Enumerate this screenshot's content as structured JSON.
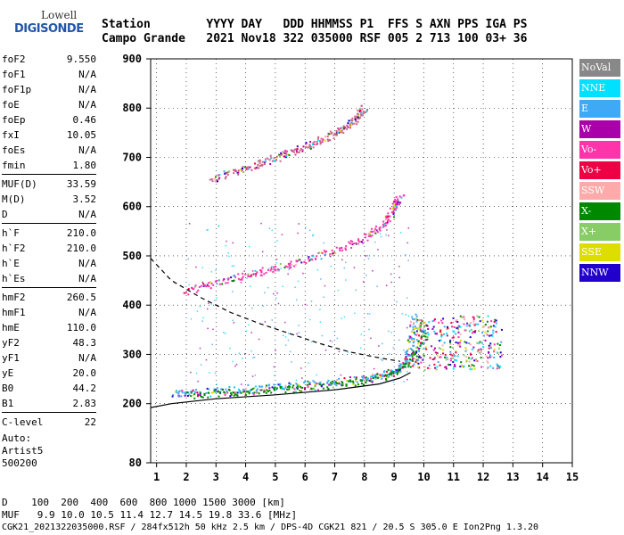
{
  "logo": {
    "line1": "Lowell",
    "line2": "DIGISONDE"
  },
  "header": {
    "line1": "Station        YYYY DAY   DDD HHMMSS P1  FFS S AXN PPS IGA PS",
    "line2": "Campo Grande   2021 Nov18 322 035000 RSF 005 2 713 100 03+ 36"
  },
  "params": [
    [
      {
        "name": "foF2",
        "value": "9.550"
      },
      {
        "name": "foF1",
        "value": "N/A"
      },
      {
        "name": "foF1p",
        "value": "N/A"
      },
      {
        "name": "foE",
        "value": "N/A"
      },
      {
        "name": "foEp",
        "value": "0.46"
      },
      {
        "name": "fxI",
        "value": "10.05"
      },
      {
        "name": "foEs",
        "value": "N/A"
      },
      {
        "name": "fmin",
        "value": "1.80"
      }
    ],
    [
      {
        "name": "MUF(D)",
        "value": "33.59"
      },
      {
        "name": "M(D)",
        "value": "3.52"
      },
      {
        "name": "D",
        "value": "N/A"
      }
    ],
    [
      {
        "name": "h`F",
        "value": "210.0"
      },
      {
        "name": "h`F2",
        "value": "210.0"
      },
      {
        "name": "h`E",
        "value": "N/A"
      },
      {
        "name": "h`Es",
        "value": "N/A"
      }
    ],
    [
      {
        "name": "hmF2",
        "value": "260.5"
      },
      {
        "name": "hmF1",
        "value": "N/A"
      },
      {
        "name": "hmE",
        "value": "110.0"
      },
      {
        "name": "yF2",
        "value": "48.3"
      },
      {
        "name": "yF1",
        "value": "N/A"
      },
      {
        "name": "yE",
        "value": "20.0"
      },
      {
        "name": "B0",
        "value": "44.2"
      },
      {
        "name": "B1",
        "value": "2.83"
      }
    ],
    [
      {
        "name": "C-level",
        "value": "22"
      }
    ]
  ],
  "auto": {
    "line1": "Auto:",
    "line2": "Artist5",
    "line3": "500200"
  },
  "legend": [
    {
      "label": "NoVal",
      "color": "#888888"
    },
    {
      "label": "NNE",
      "color": "#00e0ff"
    },
    {
      "label": "E",
      "color": "#3fa9f5"
    },
    {
      "label": "W",
      "color": "#aa00aa"
    },
    {
      "label": "Vo-",
      "color": "#ff33aa"
    },
    {
      "label": "Vo+",
      "color": "#ee0044"
    },
    {
      "label": "SSW",
      "color": "#ffaaaa"
    },
    {
      "label": "X-",
      "color": "#008800"
    },
    {
      "label": "X+",
      "color": "#88cc66"
    },
    {
      "label": "SSE",
      "color": "#dddd00"
    },
    {
      "label": "NNW",
      "color": "#2200cc"
    }
  ],
  "footer": {
    "line1": "D    100  200  400  600  800 1000 1500 3000 [km]",
    "line2": "MUF   9.9 10.0 10.5 11.4 12.7 14.5 19.8 33.6 [MHz]",
    "line3": "CGK21_2021322035000.RSF / 284fx512h 50 kHz 2.5 km / DPS-4D CGK21 821 / 20.5 S 305.0 E Ion2Png 1.3.20"
  },
  "chart_data": {
    "type": "scatter",
    "xlim": [
      0.8,
      15
    ],
    "ylim": [
      80,
      900
    ],
    "xticks": [
      1,
      2,
      3,
      4,
      5,
      6,
      7,
      8,
      9,
      10,
      11,
      12,
      13,
      14,
      15
    ],
    "yticks": [
      80,
      200,
      300,
      400,
      500,
      600,
      700,
      800,
      900
    ],
    "grid": true,
    "trace_bands": [
      {
        "name": "O-mode F trace",
        "color": "#3fa9f5",
        "points": [
          [
            1.5,
            222
          ],
          [
            2,
            224
          ],
          [
            3,
            228
          ],
          [
            4,
            232
          ],
          [
            5,
            236
          ],
          [
            6,
            240
          ],
          [
            7,
            245
          ],
          [
            8,
            252
          ],
          [
            8.5,
            258
          ],
          [
            9,
            268
          ],
          [
            9.3,
            282
          ],
          [
            9.5,
            305
          ],
          [
            9.6,
            340
          ],
          [
            9.65,
            380
          ]
        ]
      },
      {
        "name": "X-mode F trace",
        "color": "#008800",
        "points": [
          [
            2,
            218
          ],
          [
            3,
            222
          ],
          [
            4,
            226
          ],
          [
            5,
            230
          ],
          [
            6,
            234
          ],
          [
            7,
            240
          ],
          [
            8,
            248
          ],
          [
            9,
            262
          ],
          [
            9.6,
            290
          ],
          [
            9.9,
            330
          ],
          [
            10.0,
            370
          ]
        ]
      },
      {
        "name": "2nd hop F trace",
        "color": "#ff33aa",
        "points": [
          [
            2,
            428
          ],
          [
            3,
            448
          ],
          [
            4,
            462
          ],
          [
            5,
            476
          ],
          [
            6,
            492
          ],
          [
            7,
            512
          ],
          [
            8,
            538
          ],
          [
            8.6,
            565
          ],
          [
            9,
            598
          ],
          [
            9.2,
            620
          ]
        ]
      },
      {
        "name": "3rd hop F trace",
        "color": "#cc6688",
        "points": [
          [
            2.8,
            655
          ],
          [
            4,
            680
          ],
          [
            5,
            700
          ],
          [
            6,
            722
          ],
          [
            7,
            750
          ],
          [
            7.6,
            775
          ],
          [
            8,
            800
          ]
        ]
      }
    ],
    "profile": {
      "name": "Electron density profile",
      "points": [
        [
          0.8,
          192
        ],
        [
          1.5,
          200
        ],
        [
          3,
          210
        ],
        [
          5,
          218
        ],
        [
          7,
          228
        ],
        [
          8.5,
          240
        ],
        [
          9.2,
          252
        ],
        [
          9.55,
          263
        ]
      ]
    },
    "muf_curve": {
      "name": "MUF curve",
      "points": [
        [
          0.8,
          495
        ],
        [
          1.5,
          450
        ],
        [
          2.5,
          415
        ],
        [
          3.5,
          385
        ],
        [
          4.5,
          362
        ],
        [
          5.5,
          342
        ],
        [
          6.5,
          322
        ],
        [
          7.5,
          305
        ],
        [
          8.5,
          293
        ],
        [
          9.2,
          286
        ]
      ]
    }
  }
}
